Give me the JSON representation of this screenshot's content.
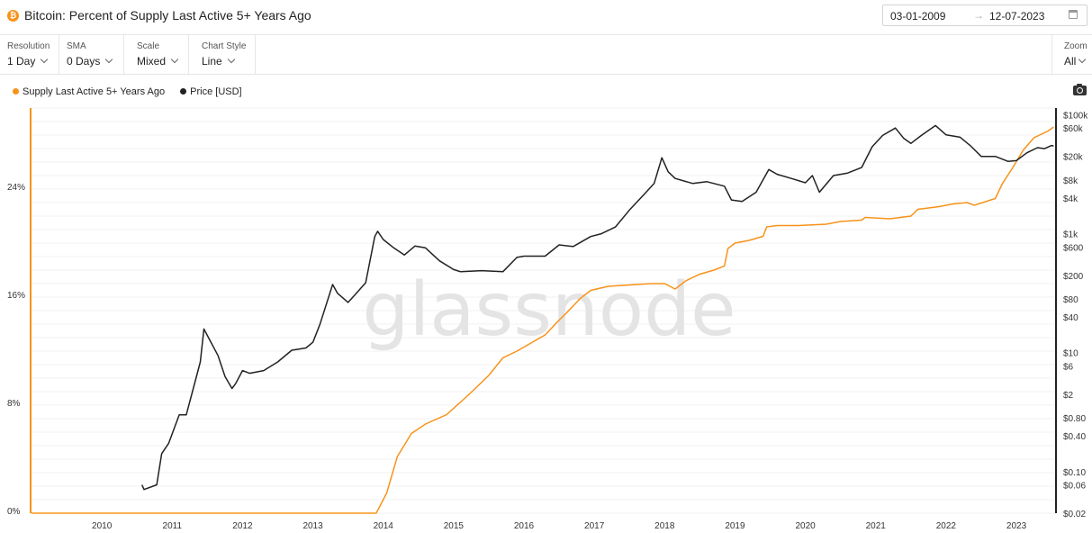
{
  "header": {
    "title": "Bitcoin: Percent of Supply Last Active 5+ Years Ago",
    "coin_icon": "bitcoin-icon",
    "date_start": "03-01-2009",
    "date_arrow": "→",
    "date_end": "12-07-2023"
  },
  "controls": [
    {
      "label": "Resolution",
      "value": "1 Day"
    },
    {
      "label": "SMA",
      "value": "0 Days"
    },
    {
      "label": "Scale",
      "value": "Mixed"
    },
    {
      "label": "Chart Style",
      "value": "Line"
    }
  ],
  "zoom": {
    "label": "Zoom",
    "value": "All"
  },
  "watermark": "glassnode",
  "colors": {
    "supply": "#f7931a",
    "price": "#222222"
  },
  "chart_data": {
    "type": "line",
    "grid": true,
    "legend_position": "top-left",
    "x_ticks": [
      "2010",
      "2011",
      "2012",
      "2013",
      "2014",
      "2015",
      "2016",
      "2017",
      "2018",
      "2019",
      "2020",
      "2021",
      "2022",
      "2023"
    ],
    "y_left": {
      "ticks": [
        "0%",
        "8%",
        "16%",
        "24%"
      ],
      "values": [
        0,
        8,
        16,
        24
      ],
      "scale": "linear"
    },
    "y_right": {
      "ticks": [
        "$0.02",
        "$0.06",
        "$0.10",
        "$0.40",
        "$0.80",
        "$2",
        "$6",
        "$10",
        "$40",
        "$80",
        "$200",
        "$600",
        "$1k",
        "$4k",
        "$8k",
        "$20k",
        "$60k",
        "$100k"
      ],
      "values": [
        0.02,
        0.06,
        0.1,
        0.4,
        0.8,
        2,
        6,
        10,
        40,
        80,
        200,
        600,
        1000,
        4000,
        8000,
        20000,
        60000,
        100000
      ],
      "scale": "log"
    },
    "series": [
      {
        "name": "Supply Last Active 5+ Years Ago",
        "axis": "left",
        "points": [
          [
            2009.0,
            0
          ],
          [
            2013.9,
            0
          ],
          [
            2014.05,
            1.5
          ],
          [
            2014.2,
            4.2
          ],
          [
            2014.4,
            5.9
          ],
          [
            2014.6,
            6.6
          ],
          [
            2014.9,
            7.3
          ],
          [
            2015.2,
            8.7
          ],
          [
            2015.5,
            10.2
          ],
          [
            2015.7,
            11.5
          ],
          [
            2015.9,
            12.0
          ],
          [
            2016.1,
            12.6
          ],
          [
            2016.3,
            13.2
          ],
          [
            2016.5,
            14.3
          ],
          [
            2016.6,
            14.8
          ],
          [
            2016.8,
            15.9
          ],
          [
            2016.95,
            16.5
          ],
          [
            2017.2,
            16.8
          ],
          [
            2017.5,
            16.9
          ],
          [
            2017.8,
            17.0
          ],
          [
            2018.0,
            17.0
          ],
          [
            2018.15,
            16.6
          ],
          [
            2018.3,
            17.2
          ],
          [
            2018.5,
            17.7
          ],
          [
            2018.7,
            18.0
          ],
          [
            2018.85,
            18.3
          ],
          [
            2018.9,
            19.6
          ],
          [
            2019.0,
            20.0
          ],
          [
            2019.2,
            20.2
          ],
          [
            2019.4,
            20.5
          ],
          [
            2019.45,
            21.2
          ],
          [
            2019.6,
            21.3
          ],
          [
            2019.9,
            21.3
          ],
          [
            2020.3,
            21.4
          ],
          [
            2020.5,
            21.6
          ],
          [
            2020.8,
            21.7
          ],
          [
            2020.85,
            21.9
          ],
          [
            2021.2,
            21.8
          ],
          [
            2021.5,
            22.0
          ],
          [
            2021.6,
            22.5
          ],
          [
            2021.9,
            22.7
          ],
          [
            2022.1,
            22.9
          ],
          [
            2022.3,
            23.0
          ],
          [
            2022.4,
            22.8
          ],
          [
            2022.7,
            23.3
          ],
          [
            2022.8,
            24.4
          ],
          [
            2022.95,
            25.6
          ],
          [
            2023.1,
            26.9
          ],
          [
            2023.25,
            27.8
          ],
          [
            2023.45,
            28.3
          ],
          [
            2023.53,
            28.6
          ]
        ]
      },
      {
        "name": "Price [USD]",
        "axis": "right",
        "points": [
          [
            2010.57,
            0.06
          ],
          [
            2010.6,
            0.05
          ],
          [
            2010.78,
            0.06
          ],
          [
            2010.85,
            0.2
          ],
          [
            2010.95,
            0.3
          ],
          [
            2011.1,
            0.9
          ],
          [
            2011.2,
            0.9
          ],
          [
            2011.3,
            2.5
          ],
          [
            2011.4,
            7
          ],
          [
            2011.45,
            25
          ],
          [
            2011.55,
            15
          ],
          [
            2011.65,
            9
          ],
          [
            2011.75,
            4
          ],
          [
            2011.85,
            2.5
          ],
          [
            2011.9,
            3
          ],
          [
            2012.0,
            5
          ],
          [
            2012.1,
            4.5
          ],
          [
            2012.3,
            5
          ],
          [
            2012.5,
            7
          ],
          [
            2012.7,
            11
          ],
          [
            2012.9,
            12
          ],
          [
            2013.0,
            15
          ],
          [
            2013.1,
            30
          ],
          [
            2013.28,
            140
          ],
          [
            2013.35,
            100
          ],
          [
            2013.5,
            70
          ],
          [
            2013.6,
            95
          ],
          [
            2013.75,
            150
          ],
          [
            2013.88,
            900
          ],
          [
            2013.92,
            1100
          ],
          [
            2014.0,
            800
          ],
          [
            2014.15,
            580
          ],
          [
            2014.3,
            440
          ],
          [
            2014.45,
            620
          ],
          [
            2014.6,
            580
          ],
          [
            2014.8,
            350
          ],
          [
            2015.0,
            250
          ],
          [
            2015.1,
            230
          ],
          [
            2015.4,
            240
          ],
          [
            2015.7,
            230
          ],
          [
            2015.9,
            400
          ],
          [
            2016.0,
            420
          ],
          [
            2016.3,
            420
          ],
          [
            2016.5,
            650
          ],
          [
            2016.7,
            610
          ],
          [
            2016.95,
            900
          ],
          [
            2017.1,
            1000
          ],
          [
            2017.3,
            1300
          ],
          [
            2017.5,
            2500
          ],
          [
            2017.7,
            4500
          ],
          [
            2017.85,
            7000
          ],
          [
            2017.96,
            19000
          ],
          [
            2018.05,
            11000
          ],
          [
            2018.15,
            8500
          ],
          [
            2018.4,
            7000
          ],
          [
            2018.6,
            7500
          ],
          [
            2018.85,
            6300
          ],
          [
            2018.95,
            3700
          ],
          [
            2019.1,
            3500
          ],
          [
            2019.3,
            5000
          ],
          [
            2019.48,
            12000
          ],
          [
            2019.6,
            10000
          ],
          [
            2019.8,
            8500
          ],
          [
            2020.0,
            7200
          ],
          [
            2020.1,
            9500
          ],
          [
            2020.2,
            5000
          ],
          [
            2020.4,
            9500
          ],
          [
            2020.6,
            10500
          ],
          [
            2020.8,
            13000
          ],
          [
            2020.95,
            29000
          ],
          [
            2021.1,
            45000
          ],
          [
            2021.28,
            60000
          ],
          [
            2021.4,
            40000
          ],
          [
            2021.5,
            33000
          ],
          [
            2021.65,
            45000
          ],
          [
            2021.85,
            66000
          ],
          [
            2022.0,
            46000
          ],
          [
            2022.2,
            42000
          ],
          [
            2022.35,
            30000
          ],
          [
            2022.5,
            20000
          ],
          [
            2022.7,
            20000
          ],
          [
            2022.88,
            16500
          ],
          [
            2023.0,
            17000
          ],
          [
            2023.15,
            23000
          ],
          [
            2023.3,
            28000
          ],
          [
            2023.4,
            27000
          ],
          [
            2023.5,
            30500
          ],
          [
            2023.53,
            30000
          ]
        ]
      }
    ]
  }
}
